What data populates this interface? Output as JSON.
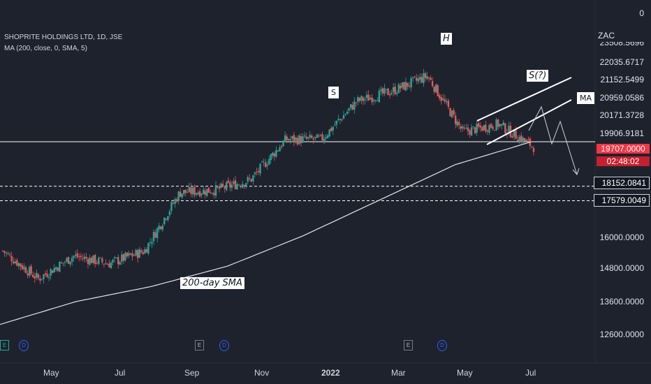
{
  "legend": {
    "symbol": "SHOPRITE HOLDINGS LTD, 1D, JSE",
    "indicator": "MA (200, close, 0, SMA, 5)"
  },
  "annotations": {
    "shoulder_left": "S",
    "head": "H",
    "shoulder_right": "S(?)",
    "sma_label": "200-day SMA",
    "ma_label": "MA"
  },
  "axis": {
    "currency": "ZAC",
    "top_value": "0",
    "price_labels": [
      "22035.6717",
      "21152.5499",
      "20959.0586",
      "20171.3728",
      "19906.9181",
      "18152.0841",
      "17579.0049",
      "16000.0000",
      "14800.0000",
      "13600.0000",
      "12600.0000"
    ],
    "partial_top_label": "23508.5696",
    "current_price": "19707.0000",
    "countdown": "02:48:02",
    "x_labels": [
      "May",
      "Jul",
      "Sep",
      "Nov",
      "2022",
      "Mar",
      "May",
      "Jul"
    ]
  },
  "markers": {
    "earnings_letter": "E",
    "dividend_letter": "D"
  },
  "colors": {
    "background": "#1e222d",
    "up_candle": "#26a69a",
    "down_candle": "#ef5350",
    "sma_line": "#e0e3eb",
    "current_price_bg": "#f23645"
  },
  "chart_data": {
    "type": "candlestick",
    "title": "SHOPRITE HOLDINGS LTD, 1D, JSE",
    "ylabel": "ZAC",
    "x_ticks": [
      "May",
      "Jul",
      "Sep",
      "Nov",
      "2022",
      "Mar",
      "May",
      "Jul"
    ],
    "ylim": [
      12600,
      23500
    ],
    "horizontal_levels": [
      19906.9181,
      18152.0841,
      17579.0049
    ],
    "last_price": 19707,
    "close_path": [
      {
        "t": "Apr 2021",
        "v": 15600
      },
      {
        "t": "May 2021",
        "v": 14500
      },
      {
        "t": "Jun 2021",
        "v": 15400
      },
      {
        "t": "Jul 2021",
        "v": 15100
      },
      {
        "t": "Aug 2021",
        "v": 15600
      },
      {
        "t": "Sep 2021",
        "v": 17900
      },
      {
        "t": "Oct 2021",
        "v": 18000
      },
      {
        "t": "Nov 2021",
        "v": 18400
      },
      {
        "t": "Dec 2021",
        "v": 20000
      },
      {
        "t": "Jan 2022",
        "v": 20000
      },
      {
        "t": "Feb 2022",
        "v": 21500
      },
      {
        "t": "Mar 2022",
        "v": 21900
      },
      {
        "t": "Apr 2022",
        "v": 22500
      },
      {
        "t": "May 2022",
        "v": 20300
      },
      {
        "t": "Jun 2022",
        "v": 20600
      },
      {
        "t": "Jul 2022",
        "v": 19707
      }
    ],
    "sma_200_path": [
      {
        "t": "Apr 2021",
        "v": 12700
      },
      {
        "t": "Jun 2021",
        "v": 13600
      },
      {
        "t": "Aug 2021",
        "v": 14200
      },
      {
        "t": "Oct 2021",
        "v": 15000
      },
      {
        "t": "Dec 2021",
        "v": 16200
      },
      {
        "t": "Feb 2022",
        "v": 17600
      },
      {
        "t": "Apr 2022",
        "v": 19000
      },
      {
        "t": "Jun 2022",
        "v": 19900
      }
    ]
  }
}
